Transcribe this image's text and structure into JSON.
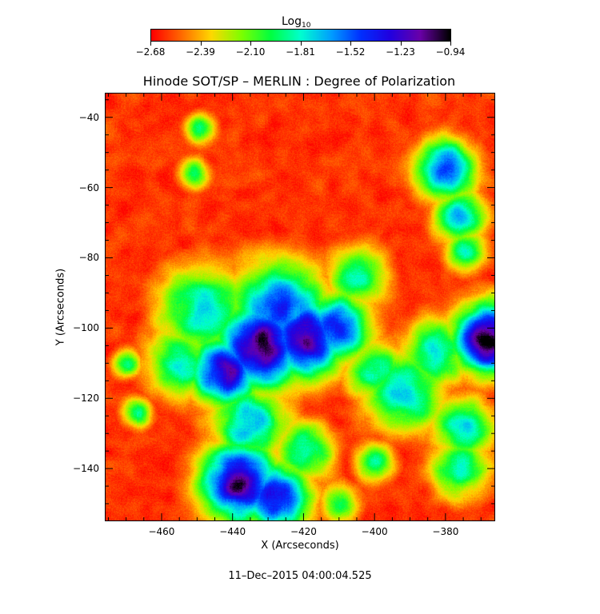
{
  "chart_data": {
    "type": "heatmap",
    "title": "Hinode SOT/SP – MERLIN : Degree of Polarization",
    "xlabel": "X (Arcseconds)",
    "ylabel": "Y (Arcseconds)",
    "xlim": [
      -476,
      -366
    ],
    "ylim": [
      -155,
      -33
    ],
    "x_ticks": [
      -460,
      -440,
      -420,
      -400,
      -380
    ],
    "y_ticks": [
      -40,
      -60,
      -80,
      -100,
      -120,
      -140
    ],
    "colorbar": {
      "title": "Log",
      "title_subscript": "10",
      "min": -2.68,
      "max": -0.94,
      "tick_labels": [
        "−2.68",
        "−2.39",
        "−2.10",
        "−1.81",
        "−1.52",
        "−1.23",
        "−0.94"
      ],
      "colormap": [
        "#ff0000",
        "#ff6a00",
        "#ffd800",
        "#7fff00",
        "#00ff40",
        "#00ffd0",
        "#00a0ff",
        "#0030ff",
        "#2200e0",
        "#6a00a8",
        "#000000"
      ]
    },
    "features": [
      {
        "x": -432,
        "y": -105,
        "level": 0.95,
        "r": 9
      },
      {
        "x": -420,
        "y": -103,
        "level": 0.9,
        "r": 8
      },
      {
        "x": -442,
        "y": -112,
        "level": 0.85,
        "r": 7
      },
      {
        "x": -427,
        "y": -95,
        "level": 0.7,
        "r": 10
      },
      {
        "x": -411,
        "y": -100,
        "level": 0.75,
        "r": 7
      },
      {
        "x": -438,
        "y": -144,
        "level": 0.9,
        "r": 8
      },
      {
        "x": -428,
        "y": -148,
        "level": 0.8,
        "r": 7
      },
      {
        "x": -448,
        "y": -95,
        "level": 0.55,
        "r": 9
      },
      {
        "x": -455,
        "y": -110,
        "level": 0.5,
        "r": 7
      },
      {
        "x": -435,
        "y": -127,
        "level": 0.55,
        "r": 8
      },
      {
        "x": -420,
        "y": -135,
        "level": 0.5,
        "r": 6
      },
      {
        "x": -405,
        "y": -85,
        "level": 0.5,
        "r": 6
      },
      {
        "x": -400,
        "y": -112,
        "level": 0.5,
        "r": 6
      },
      {
        "x": -392,
        "y": -118,
        "level": 0.55,
        "r": 8
      },
      {
        "x": -383,
        "y": -107,
        "level": 0.5,
        "r": 7
      },
      {
        "x": -368,
        "y": -103,
        "level": 1.0,
        "r": 7
      },
      {
        "x": -375,
        "y": -128,
        "level": 0.55,
        "r": 6
      },
      {
        "x": -376,
        "y": -140,
        "level": 0.5,
        "r": 6
      },
      {
        "x": -380,
        "y": -55,
        "level": 0.7,
        "r": 6
      },
      {
        "x": -376,
        "y": -68,
        "level": 0.6,
        "r": 5
      },
      {
        "x": -374,
        "y": -78,
        "level": 0.5,
        "r": 4
      },
      {
        "x": -449,
        "y": -43,
        "level": 0.45,
        "r": 3
      },
      {
        "x": -451,
        "y": -56,
        "level": 0.45,
        "r": 3
      },
      {
        "x": -467,
        "y": -124,
        "level": 0.45,
        "r": 3
      },
      {
        "x": -470,
        "y": -110,
        "level": 0.4,
        "r": 3
      },
      {
        "x": -400,
        "y": -138,
        "level": 0.45,
        "r": 4
      },
      {
        "x": -410,
        "y": -150,
        "level": 0.4,
        "r": 4
      }
    ]
  },
  "footer": "11–Dec–2015 04:00:04.525"
}
